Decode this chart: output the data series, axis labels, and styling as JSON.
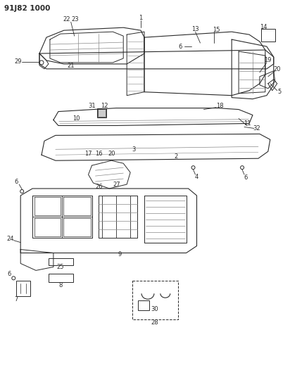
{
  "title": "91J82 1000",
  "bg_color": "#ffffff",
  "line_color": "#2a2a2a",
  "fig_width": 4.12,
  "fig_height": 5.33,
  "dpi": 100
}
